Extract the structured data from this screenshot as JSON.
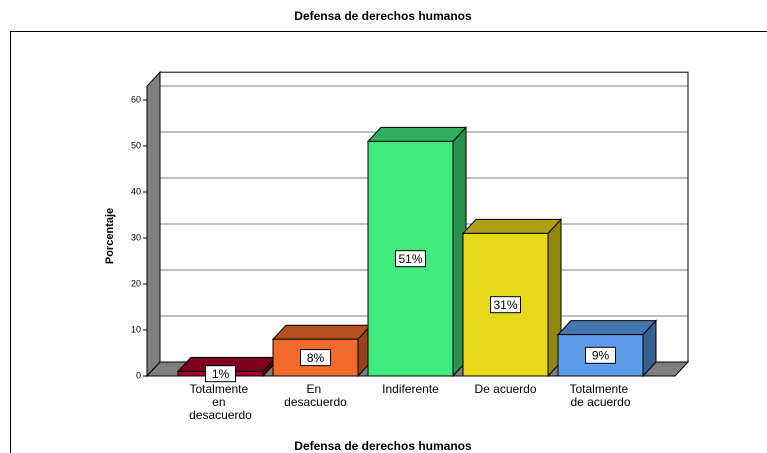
{
  "chart_data": {
    "type": "bar3d",
    "title": "Defensa de derechos humanos",
    "x_label": "Defensa de derechos humanos",
    "y_label": "Porcentaje",
    "categories": [
      "Totalmente en desacuerdo",
      "En desacuerdo",
      "Indiferente",
      "De acuerdo",
      "Totalmente de acuerdo"
    ],
    "values": [
      1,
      8,
      51,
      31,
      9
    ],
    "value_labels": [
      "1%",
      "8%",
      "51%",
      "31%",
      "9%"
    ],
    "colors": [
      "#a8002a",
      "#f26b2c",
      "#40ea7c",
      "#e8d81a",
      "#5c9ce8"
    ],
    "ylim": [
      0,
      63
    ],
    "yticks": [
      0,
      10,
      20,
      30,
      40,
      50,
      60
    ],
    "grid": true
  }
}
